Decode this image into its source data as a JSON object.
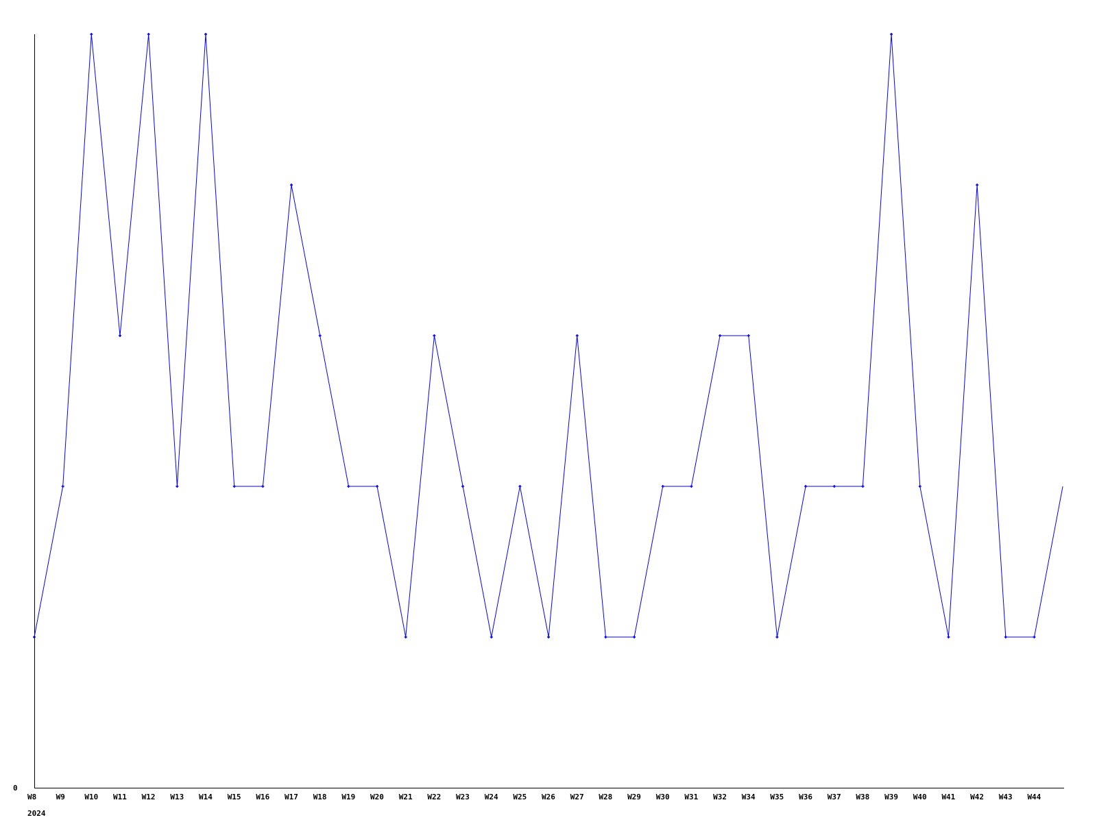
{
  "chart_data": {
    "type": "line",
    "title": "",
    "xlabel": "",
    "ylabel": "",
    "year_label": "2024",
    "y_tick_labels": [
      "0"
    ],
    "ylim": [
      0,
      5
    ],
    "grid": false,
    "line_color": "#0000ff",
    "axis_color": "#000000",
    "categories": [
      "W8",
      "W9",
      "W10",
      "W11",
      "W12",
      "W13",
      "W14",
      "W15",
      "W16",
      "W17",
      "W18",
      "W19",
      "W20",
      "W21",
      "W22",
      "W23",
      "W24",
      "W25",
      "W26",
      "W27",
      "W28",
      "W29",
      "W30",
      "W31",
      "W32",
      "W34",
      "W35",
      "W36",
      "W37",
      "W38",
      "W39",
      "W40",
      "W41",
      "W42",
      "W43",
      "W44",
      ""
    ],
    "series": [
      {
        "values": [
          1,
          2,
          5,
          3,
          5,
          2,
          5,
          2,
          2,
          4,
          3,
          2,
          2,
          1,
          3,
          2,
          1,
          2,
          1,
          3,
          1,
          1,
          2,
          2,
          3,
          3,
          1,
          2,
          2,
          2,
          5,
          2,
          1,
          4,
          1,
          1,
          2
        ]
      }
    ]
  }
}
